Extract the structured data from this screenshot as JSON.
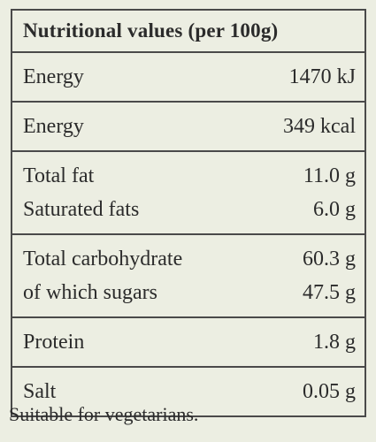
{
  "table": {
    "header": "Nutritional values (per 100g)",
    "rows": [
      [
        [
          "Energy",
          "1470 kJ"
        ]
      ],
      [
        [
          "Energy",
          "349 kcal"
        ]
      ],
      [
        [
          "Total fat",
          "11.0 g"
        ],
        [
          "Saturated fats",
          "6.0 g"
        ]
      ],
      [
        [
          "Total carbohydrate",
          "60.3 g"
        ],
        [
          "of which sugars",
          "47.5 g"
        ]
      ],
      [
        [
          "Protein",
          "1.8 g"
        ]
      ],
      [
        [
          "Salt",
          "0.05 g"
        ]
      ]
    ]
  },
  "footer": "Suitable for vegetarians."
}
